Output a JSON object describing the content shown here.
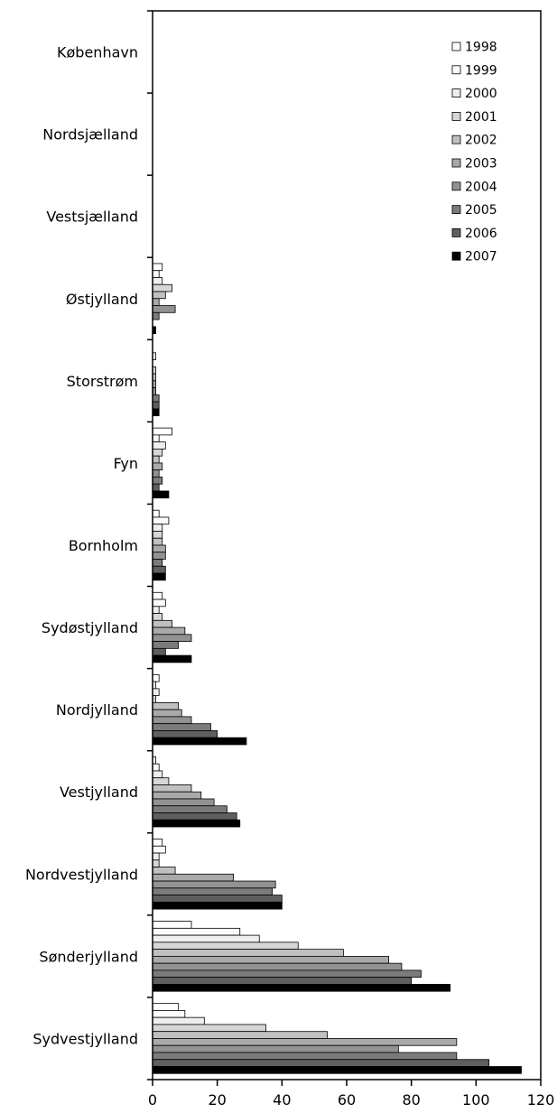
{
  "chart_data": {
    "type": "bar",
    "orientation": "horizontal",
    "title": "",
    "xlabel": "",
    "ylabel": "",
    "xlim": [
      0,
      120
    ],
    "xticks": [
      0,
      20,
      40,
      60,
      80,
      100,
      120
    ],
    "grid": false,
    "legend_position": "top-right",
    "categories": [
      "København",
      "Nordsjælland",
      "Vestsjælland",
      "Østjylland",
      "Storstrøm",
      "Fyn",
      "Bornholm",
      "Sydøstjylland",
      "Nordjylland",
      "Vestjylland",
      "Nordvestjylland",
      "Sønderjylland",
      "Sydvestjylland"
    ],
    "series": [
      {
        "name": "1998",
        "color": "#ffffff",
        "values": [
          0,
          0,
          0,
          3,
          0,
          6,
          2,
          3,
          2,
          1,
          3,
          12,
          8
        ]
      },
      {
        "name": "1999",
        "color": "#fafafa",
        "values": [
          0,
          0,
          0,
          2,
          1,
          2,
          5,
          4,
          1,
          2,
          4,
          27,
          10
        ]
      },
      {
        "name": "2000",
        "color": "#eeeeee",
        "values": [
          0,
          0,
          0,
          3,
          0,
          4,
          3,
          2,
          2,
          3,
          2,
          33,
          16
        ]
      },
      {
        "name": "2001",
        "color": "#d6d6d6",
        "values": [
          0,
          0,
          0,
          6,
          1,
          3,
          3,
          3,
          1,
          5,
          2,
          45,
          35
        ]
      },
      {
        "name": "2002",
        "color": "#c0c0c0",
        "values": [
          0,
          0,
          0,
          4,
          1,
          2,
          3,
          6,
          8,
          12,
          7,
          59,
          54
        ]
      },
      {
        "name": "2003",
        "color": "#a9a9a9",
        "values": [
          0,
          0,
          0,
          2,
          1,
          3,
          4,
          10,
          9,
          15,
          25,
          73,
          94
        ]
      },
      {
        "name": "2004",
        "color": "#929292",
        "values": [
          0,
          0,
          0,
          7,
          1,
          2,
          4,
          12,
          12,
          19,
          38,
          77,
          76
        ]
      },
      {
        "name": "2005",
        "color": "#7b7b7b",
        "values": [
          0,
          0,
          0,
          2,
          2,
          3,
          3,
          8,
          18,
          23,
          37,
          83,
          94
        ]
      },
      {
        "name": "2006",
        "color": "#5f5f5f",
        "values": [
          0,
          0,
          0,
          0,
          2,
          2,
          4,
          4,
          20,
          26,
          40,
          80,
          104
        ]
      },
      {
        "name": "2007",
        "color": "#000000",
        "values": [
          0,
          0,
          0,
          1,
          2,
          5,
          4,
          12,
          29,
          27,
          40,
          92,
          114
        ]
      }
    ]
  }
}
